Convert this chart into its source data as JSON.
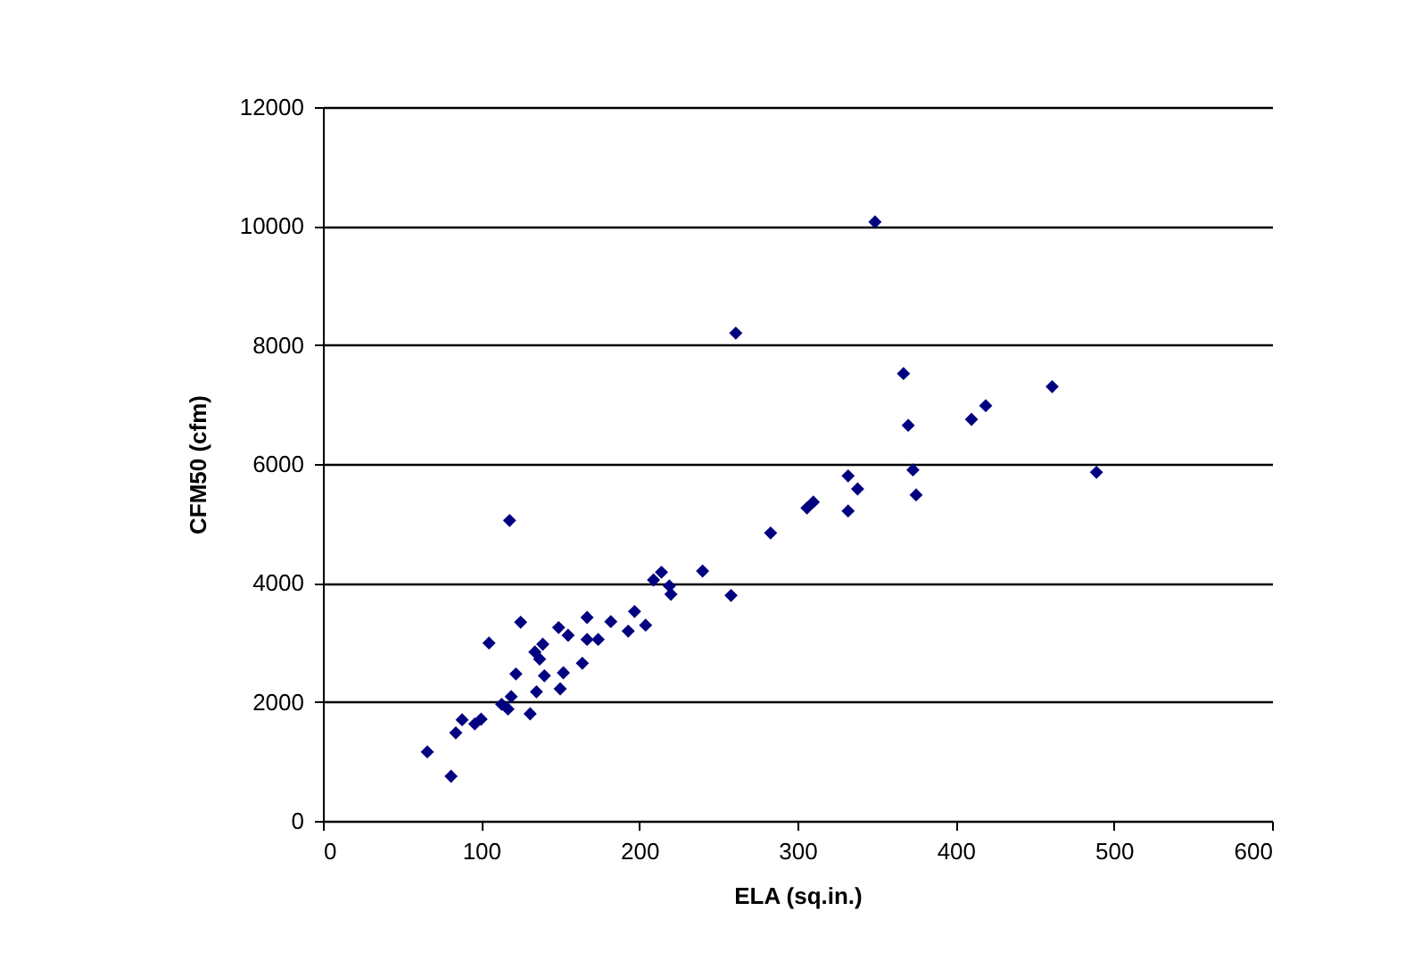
{
  "chart_data": {
    "type": "scatter",
    "xlabel": "ELA (sq.in.)",
    "ylabel": "CFM50 (cfm)",
    "xlim": [
      0,
      600
    ],
    "xticks": [
      0,
      100,
      200,
      300,
      400,
      500,
      600
    ],
    "ylim": [
      0,
      12000
    ],
    "yticks": [
      0,
      2000,
      4000,
      6000,
      8000,
      10000,
      12000
    ],
    "grid": "y",
    "marker": "diamond",
    "series": [
      {
        "color": "#000080",
        "x": [
          118,
          209,
          125,
          105,
          149,
          155,
          167,
          182,
          197,
          204,
          193,
          174,
          167,
          134,
          139,
          137,
          164,
          122,
          140,
          152,
          150,
          135,
          119,
          113,
          117,
          131,
          100,
          96,
          88,
          84,
          66,
          81,
          261,
          283,
          240,
          258,
          214,
          220,
          219,
          310,
          306,
          349,
          367,
          461,
          370,
          410,
          419,
          373,
          489,
          375,
          332,
          338,
          332
        ],
        "values": [
          5050,
          4050,
          3340,
          2990,
          3250,
          3120,
          3420,
          3350,
          3520,
          3290,
          3190,
          3050,
          3050,
          2840,
          2970,
          2720,
          2650,
          2470,
          2440,
          2490,
          2220,
          2170,
          2090,
          1960,
          1880,
          1800,
          1710,
          1630,
          1700,
          1480,
          1160,
          750,
          8200,
          4840,
          4200,
          3790,
          4180,
          3810,
          3950,
          5360,
          5260,
          10070,
          7520,
          7300,
          6650,
          6750,
          6980,
          5900,
          5860,
          5480,
          5800,
          5580,
          5210
        ]
      }
    ]
  }
}
